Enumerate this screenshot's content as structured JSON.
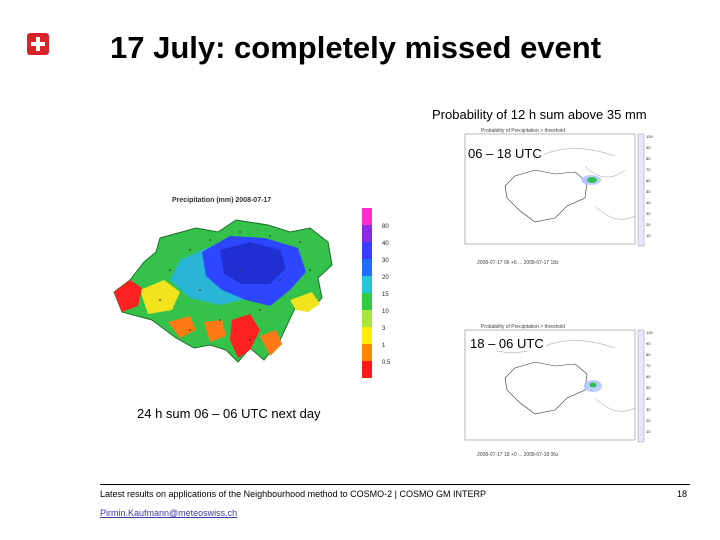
{
  "slide": {
    "title": "17 July: completely missed event",
    "prob_caption": "Probability of 12 h sum above 35 mm",
    "forecast_1_label": "06 – 18 UTC",
    "forecast_2_label": "18 – 06 UTC",
    "accumulation_caption": "24 h sum 06 – 06 UTC next day",
    "footer_text": "Latest results on applications of the Neighbourhood method to COSMO-2 | COSMO GM INTERP",
    "page_number": "18",
    "email": "Pirmin.Kaufmann@meteoswiss.ch"
  },
  "main_map": {
    "title": "Precipitation (mm) 2008-07-17",
    "legend_ticks": [
      "80",
      "40",
      "30",
      "20",
      "15",
      "10",
      "3",
      "1",
      "0.5"
    ],
    "legend_colors": [
      "#ff2dcc",
      "#8a2be2",
      "#3b3bff",
      "#1e6fff",
      "#26c6da",
      "#2ecc40",
      "#a8e63c",
      "#ffee00",
      "#ff8800",
      "#ff1a1a"
    ]
  },
  "forecast_maps": [
    {
      "header": "Probability of Precipitation > threshold",
      "footer": "2008-07-17 06 +6 ... 2008-07-17 18z",
      "colorbar_ticks": [
        "120",
        "90",
        "80",
        "70",
        "60",
        "50",
        "40",
        "30",
        "20",
        "10"
      ]
    },
    {
      "header": "Probability of Precipitation > threshold",
      "footer": "2008-07-17 18 +0 ... 2008-07-18 06z",
      "colorbar_ticks": [
        "120",
        "90",
        "80",
        "70",
        "60",
        "50",
        "40",
        "30",
        "20",
        "10"
      ]
    }
  ]
}
